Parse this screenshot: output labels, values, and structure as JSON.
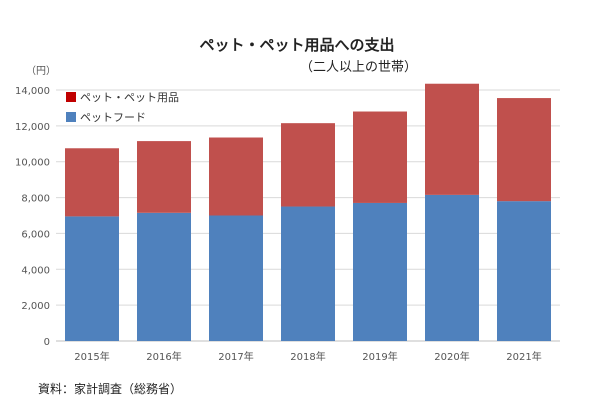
{
  "chart_data": {
    "type": "bar",
    "stacked": true,
    "title": "ペット・ペット用品への支出",
    "subtitle": "（二人以上の世帯）",
    "ylabel": "（円）",
    "xlabel": "",
    "categories": [
      "2015年",
      "2016年",
      "2017年",
      "2018年",
      "2019年",
      "2020年",
      "2021年"
    ],
    "series": [
      {
        "name": "ペットフード",
        "color": "#4f81bd",
        "values": [
          6950,
          7150,
          7000,
          7500,
          7700,
          8150,
          7800
        ]
      },
      {
        "name": "ペット・ペット用品",
        "color": "#c0504d",
        "values": [
          3800,
          4000,
          4350,
          4650,
          5100,
          6200,
          5750
        ]
      }
    ],
    "ylim": [
      0,
      14000
    ],
    "yticks": [
      "0",
      "2,000",
      "4,000",
      "6,000",
      "8,000",
      "10,000",
      "12,000",
      "14,000"
    ],
    "legend_position": "top-left",
    "legend_order": [
      "ペット・ペット用品",
      "ペットフード"
    ],
    "legend_swatch_color_first": "#c00000",
    "grid": true
  },
  "source_note": "資料：家計調査（総務省）"
}
